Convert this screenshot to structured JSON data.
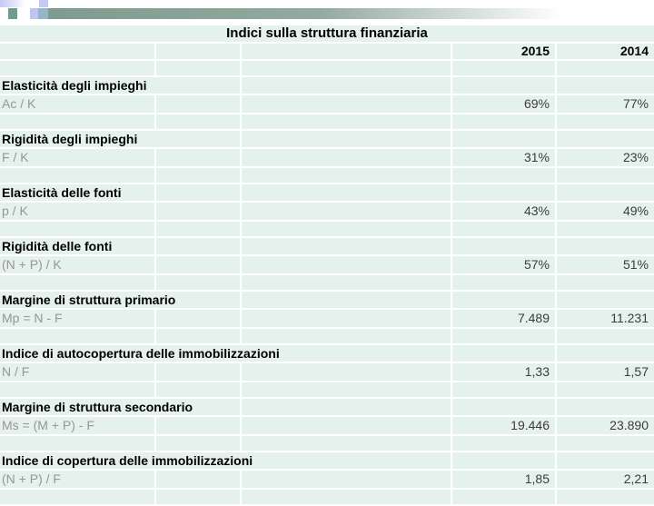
{
  "slide": {
    "title": "Indici sulla struttura finanziaria"
  },
  "table": {
    "columns": {
      "y2015": "2015",
      "y2014": "2014"
    },
    "rows": [
      {
        "name": "Elasticità degli impieghi",
        "formula": "Ac / K",
        "v2015": "69%",
        "v2014": "77%"
      },
      {
        "name": "Rigidità degli impieghi",
        "formula": "F / K",
        "v2015": "31%",
        "v2014": "23%"
      },
      {
        "name": "Elasticità delle fonti",
        "formula": "p / K",
        "v2015": "43%",
        "v2014": "49%"
      },
      {
        "name": "Rigidità delle fonti",
        "formula": "(N + P) / K",
        "v2015": "57%",
        "v2014": "51%"
      },
      {
        "name": "Margine di struttura primario",
        "formula": "Mp = N - F",
        "v2015": "7.489",
        "v2014": "11.231"
      },
      {
        "name": "Indice di autocopertura delle immobilizzazioni",
        "formula": "N / F",
        "v2015": "1,33",
        "v2014": "1,57"
      },
      {
        "name": "Margine di struttura secondario",
        "formula": "Ms = (M + P) - F",
        "v2015": "19.446",
        "v2014": "23.890"
      },
      {
        "name": "Indice di copertura delle immobilizzazioni",
        "formula": "(N + P) / F",
        "v2015": "1,85",
        "v2014": "2,21"
      }
    ]
  },
  "colors": {
    "cell_background": "#e4f1ed",
    "gridline": "#ffffff",
    "name_text": "#000000",
    "formula_text": "#969696",
    "value_text": "#3c3c3c",
    "deco_green_bar": "#7d9c8e",
    "deco_teal_square": "#6e9c8d",
    "deco_lavender": "#c4c8f3",
    "deco_blue_square": "#93b7c6"
  }
}
